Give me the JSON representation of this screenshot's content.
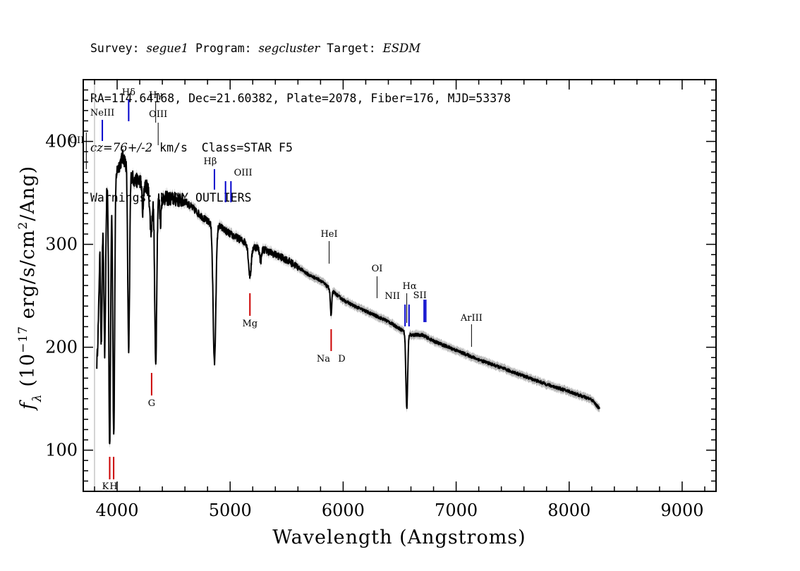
{
  "header": {
    "survey_label": "Survey:",
    "survey": "segue1",
    "program_label": "Program:",
    "program": "segcluster",
    "target_label": "Target:",
    "target": "ESDM",
    "line2": "RA=114.64168, Dec=21.60382, Plate=2078, Fiber=176, MJD=53378",
    "cz": "cz=76+/-2",
    "line3_rest": "km/s  Class=STAR F5",
    "line4": "Warnings: MANY_OUTLIERS"
  },
  "chart_data": {
    "type": "line",
    "title": "",
    "xlabel": "Wavelength (Angstroms)",
    "ylabel": "f_λ (10^-17 erg/s/cm^2/Ang)",
    "xlim": [
      3700,
      9300
    ],
    "ylim": [
      60,
      460
    ],
    "x_ticks": [
      4000,
      5000,
      6000,
      7000,
      8000,
      9000
    ],
    "y_ticks": [
      100,
      200,
      300,
      400
    ],
    "continuum": [
      [
        3820,
        250
      ],
      [
        3850,
        340
      ],
      [
        3900,
        360
      ],
      [
        3950,
        368
      ],
      [
        4000,
        372
      ],
      [
        4050,
        385
      ],
      [
        4100,
        375
      ],
      [
        4150,
        362
      ],
      [
        4200,
        362
      ],
      [
        4300,
        352
      ],
      [
        4400,
        345
      ],
      [
        4500,
        344
      ],
      [
        4600,
        342
      ],
      [
        4700,
        332
      ],
      [
        4800,
        322
      ],
      [
        4900,
        318
      ],
      [
        5000,
        310
      ],
      [
        5100,
        304
      ],
      [
        5200,
        298
      ],
      [
        5300,
        295
      ],
      [
        5400,
        290
      ],
      [
        5500,
        285
      ],
      [
        5600,
        278
      ],
      [
        5700,
        270
      ],
      [
        5800,
        265
      ],
      [
        5900,
        255
      ],
      [
        6000,
        246
      ],
      [
        6100,
        240
      ],
      [
        6200,
        235
      ],
      [
        6300,
        230
      ],
      [
        6400,
        225
      ],
      [
        6500,
        218
      ],
      [
        6600,
        212
      ],
      [
        6700,
        212
      ],
      [
        6800,
        206
      ],
      [
        7000,
        197
      ],
      [
        7200,
        188
      ],
      [
        7400,
        180
      ],
      [
        7600,
        172
      ],
      [
        7800,
        164
      ],
      [
        8000,
        157
      ],
      [
        8200,
        149
      ],
      [
        8270,
        140
      ]
    ],
    "absorption_features": [
      {
        "center": 3820,
        "depth": 55,
        "width": 7
      },
      {
        "center": 3835,
        "depth": 60,
        "width": 8
      },
      {
        "center": 3860,
        "depth": 140,
        "width": 7
      },
      {
        "center": 3890,
        "depth": 160,
        "width": 8
      },
      {
        "center": 3934,
        "depth": 260,
        "width": 8
      },
      {
        "center": 3970,
        "depth": 255,
        "width": 8
      },
      {
        "center": 4102,
        "depth": 180,
        "width": 8
      },
      {
        "center": 4227,
        "depth": 30,
        "width": 6
      },
      {
        "center": 4300,
        "depth": 40,
        "width": 10
      },
      {
        "center": 4341,
        "depth": 165,
        "width": 9
      },
      {
        "center": 4383,
        "depth": 25,
        "width": 6
      },
      {
        "center": 4861,
        "depth": 135,
        "width": 12
      },
      {
        "center": 5175,
        "depth": 30,
        "width": 12
      },
      {
        "center": 5270,
        "depth": 12,
        "width": 8
      },
      {
        "center": 5893,
        "depth": 25,
        "width": 6
      },
      {
        "center": 6563,
        "depth": 73,
        "width": 8
      }
    ],
    "error_band": 4,
    "emission_lines": [
      {
        "label": "OII",
        "x": 3727,
        "color": "#000000"
      },
      {
        "label": "NeIII",
        "x": 3869,
        "color": "#0000cc"
      },
      {
        "label": "Hδ",
        "x": 4102,
        "color": "#0000cc"
      },
      {
        "label": "Hγ",
        "x": 4341,
        "color": "#000000"
      },
      {
        "label": "OIII",
        "x": 4363,
        "color": "#000000"
      },
      {
        "label": "Hβ",
        "x": 4861,
        "color": "#0000cc"
      },
      {
        "label": "OIII",
        "x": 4959,
        "color": "#0000cc"
      },
      {
        "label": "OIII",
        "x": 5007,
        "color": "#0000cc"
      },
      {
        "label": "HeI",
        "x": 5876,
        "color": "#000000"
      },
      {
        "label": "OI",
        "x": 6300,
        "color": "#000000"
      },
      {
        "label": "NII",
        "x": 6548,
        "color": "#0000cc"
      },
      {
        "label": "Hα",
        "x": 6563,
        "color": "#000000"
      },
      {
        "label": "NII",
        "x": 6583,
        "color": "#0000cc"
      },
      {
        "label": "SII",
        "x": 6717,
        "color": "#0000cc"
      },
      {
        "label": "SII",
        "x": 6731,
        "color": "#0000cc"
      },
      {
        "label": "ArIII",
        "x": 7136,
        "color": "#000000"
      }
    ],
    "absorption_lines": [
      {
        "label": "K",
        "x": 3934,
        "color": "#cc0000"
      },
      {
        "label": "H",
        "x": 3969,
        "color": "#cc0000"
      },
      {
        "label": "G",
        "x": 4305,
        "color": "#cc0000"
      },
      {
        "label": "Mg",
        "x": 5175,
        "color": "#cc0000"
      },
      {
        "label": "Na",
        "x": 5894,
        "color": "#cc0000"
      },
      {
        "label": "D",
        "x": 5894,
        "color": "#cc0000"
      }
    ],
    "colors": {
      "flux": "#000000",
      "error_band": "#b4b4b4",
      "emission": "#0000cc",
      "absorption": "#cc0000"
    }
  }
}
